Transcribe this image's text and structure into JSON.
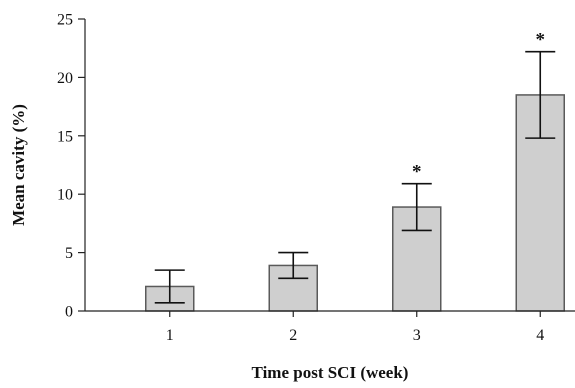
{
  "chart_data": {
    "type": "bar",
    "title": "",
    "xlabel": "Time post SCI (week)",
    "ylabel": "Mean cavity (%)",
    "categories": [
      "1",
      "2",
      "3",
      "4"
    ],
    "values": [
      2.1,
      3.9,
      8.9,
      18.5
    ],
    "error": [
      1.4,
      1.1,
      2.0,
      3.7
    ],
    "significance": [
      "",
      "",
      "*",
      "*"
    ],
    "ylim": [
      0,
      25
    ],
    "yticks": [
      0,
      5,
      10,
      15,
      20,
      25
    ],
    "grid": false,
    "bar_color": "#cfcfcf",
    "bar_edge_color": "#5a5a5a",
    "error_color": "#111111"
  }
}
